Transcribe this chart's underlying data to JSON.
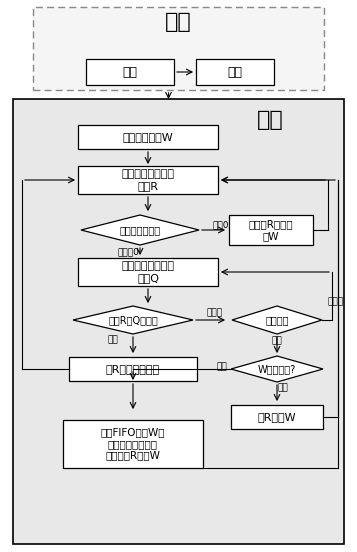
{
  "title_top": "排序",
  "title_dedup": "去重",
  "box_fenchi": "分词",
  "box_paixu": "排序",
  "box1": "设定窗口大小W",
  "box2": "遍历集合中每一个\n记录R",
  "diamond1": "窗口中记录个数",
  "box_add_window": "将记录R加入窗\n口W",
  "box3": "遍历窗口中每一个\n记录Q",
  "diamond2": "计算R与Q相似度",
  "diamond3": "遍历结束",
  "box4": "将R从集合中删除",
  "diamond4": "W窗口已满?",
  "box5": "将R加入W",
  "box6": "根据FIFO移除W中\n元素，加入不重复\n队列，将R加入W",
  "label_dengyu0": "等于0",
  "label_budengyu0": "不等于0",
  "label_xiansi": "相似",
  "label_buxiansi": "不相似",
  "label_weijeshu": "未结束",
  "label_jieshu": "结束",
  "label_yiman": "已满",
  "label_weiman": "未满",
  "bg_white": "#ffffff",
  "bg_gray": "#e8e8e8",
  "border_black": "#000000",
  "border_gray": "#888888"
}
